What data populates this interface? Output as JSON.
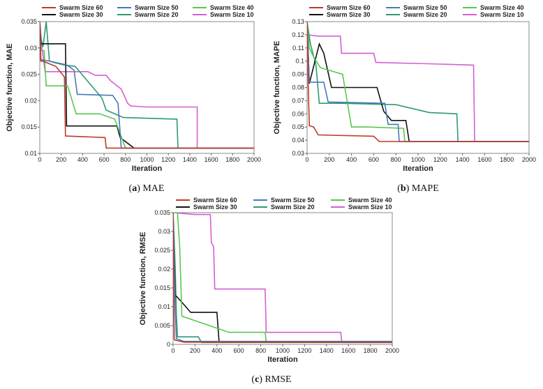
{
  "colors": {
    "Swarm Size 60": "#c0392b",
    "Swarm Size 50": "#4a78b8",
    "Swarm Size 40": "#57c94a",
    "Swarm Size 30": "#111111",
    "Swarm Size 20": "#2e9a72",
    "Swarm Size 10": "#d35fd3"
  },
  "chart_data": [
    {
      "type": "line",
      "caption_letter": "(a)",
      "caption_text": " MAE",
      "xlabel": "Iteration",
      "ylabel": "Objective function, MAE",
      "xlim": [
        0,
        2000
      ],
      "ylim": [
        0.01,
        0.035
      ],
      "xticks": [
        "0",
        "200",
        "400",
        "600",
        "800",
        "1000",
        "1200",
        "1400",
        "1600",
        "1800",
        "2000"
      ],
      "yticks": [
        "0.01",
        "0.015",
        "0.02",
        "0.025",
        "0.03",
        "0.035"
      ],
      "legend": [
        "Swarm Size 60",
        "Swarm Size 50",
        "Swarm Size 40",
        "Swarm Size 30",
        "Swarm Size 20",
        "Swarm Size 10"
      ],
      "series": [
        {
          "name": "Swarm Size 10",
          "x": [
            0,
            20,
            50,
            450,
            520,
            620,
            660,
            760,
            820,
            850,
            1000,
            1470,
            1470,
            2000
          ],
          "y": [
            0.035,
            0.03,
            0.0255,
            0.0255,
            0.0248,
            0.0248,
            0.0238,
            0.0222,
            0.0195,
            0.019,
            0.0188,
            0.0188,
            0.011,
            0.011
          ]
        },
        {
          "name": "Swarm Size 20",
          "x": [
            0,
            10,
            30,
            60,
            90,
            140,
            220,
            330,
            580,
            620,
            780,
            1280,
            1290,
            2000
          ],
          "y": [
            0.035,
            0.032,
            0.0302,
            0.035,
            0.0275,
            0.0272,
            0.0268,
            0.0265,
            0.0205,
            0.0182,
            0.0168,
            0.0165,
            0.011,
            0.011
          ]
        },
        {
          "name": "Swarm Size 30",
          "x": [
            0,
            10,
            30,
            240,
            250,
            720,
            750,
            880,
            2000
          ],
          "y": [
            0.035,
            0.0308,
            0.0308,
            0.0308,
            0.0152,
            0.0152,
            0.013,
            0.011,
            0.011
          ]
        },
        {
          "name": "Swarm Size 40",
          "x": [
            0,
            10,
            40,
            60,
            260,
            340,
            560,
            700,
            800,
            1500,
            2000
          ],
          "y": [
            0.035,
            0.0295,
            0.0295,
            0.0228,
            0.0228,
            0.0175,
            0.0175,
            0.0165,
            0.011,
            0.011,
            0.011
          ]
        },
        {
          "name": "Swarm Size 50",
          "x": [
            0,
            10,
            90,
            250,
            320,
            350,
            680,
            730,
            760,
            2000
          ],
          "y": [
            0.035,
            0.0278,
            0.0275,
            0.0268,
            0.0258,
            0.0212,
            0.021,
            0.0195,
            0.011,
            0.011
          ]
        },
        {
          "name": "Swarm Size 60",
          "x": [
            0,
            10,
            30,
            150,
            230,
            240,
            610,
            620,
            2000
          ],
          "y": [
            0.035,
            0.0275,
            0.0275,
            0.0265,
            0.0245,
            0.0133,
            0.013,
            0.011,
            0.011
          ]
        }
      ]
    },
    {
      "type": "line",
      "caption_letter": "(b)",
      "caption_text": " MAPE",
      "xlabel": "Iteration",
      "ylabel": "Objective function, MAPE",
      "xlim": [
        0,
        2000
      ],
      "ylim": [
        0.03,
        0.13
      ],
      "xticks": [
        "0",
        "200",
        "400",
        "600",
        "800",
        "1000",
        "1200",
        "1400",
        "1600",
        "1800",
        "2000"
      ],
      "yticks": [
        "0.03",
        "0.04",
        "0.05",
        "0.06",
        "0.07",
        "0.08",
        "0.09",
        "0.1",
        "0.11",
        "0.12",
        "0.13"
      ],
      "legend": [
        "Swarm Size 60",
        "Swarm Size 50",
        "Swarm Size 40",
        "Swarm Size 30",
        "Swarm Size 20",
        "Swarm Size 10"
      ],
      "series": [
        {
          "name": "Swarm Size 10",
          "x": [
            0,
            100,
            300,
            310,
            600,
            620,
            1100,
            1500,
            1510,
            2000
          ],
          "y": [
            0.12,
            0.119,
            0.119,
            0.106,
            0.106,
            0.099,
            0.098,
            0.097,
            0.039,
            0.039
          ]
        },
        {
          "name": "Swarm Size 20",
          "x": [
            0,
            30,
            80,
            110,
            300,
            800,
            1100,
            1350,
            1360,
            2000
          ],
          "y": [
            0.13,
            0.113,
            0.097,
            0.068,
            0.068,
            0.067,
            0.061,
            0.06,
            0.039,
            0.039
          ]
        },
        {
          "name": "Swarm Size 30",
          "x": [
            0,
            20,
            110,
            150,
            220,
            630,
            690,
            760,
            890,
            920,
            2000
          ],
          "y": [
            0.13,
            0.083,
            0.113,
            0.106,
            0.08,
            0.08,
            0.062,
            0.055,
            0.055,
            0.039,
            0.039
          ]
        },
        {
          "name": "Swarm Size 40",
          "x": [
            0,
            20,
            60,
            120,
            200,
            320,
            400,
            560,
            870,
            880,
            2000
          ],
          "y": [
            0.13,
            0.11,
            0.103,
            0.095,
            0.093,
            0.09,
            0.05,
            0.05,
            0.049,
            0.039,
            0.039
          ]
        },
        {
          "name": "Swarm Size 50",
          "x": [
            0,
            20,
            150,
            190,
            700,
            730,
            820,
            830,
            2000
          ],
          "y": [
            0.13,
            0.084,
            0.084,
            0.069,
            0.068,
            0.052,
            0.052,
            0.039,
            0.039
          ]
        },
        {
          "name": "Swarm Size 60",
          "x": [
            0,
            10,
            20,
            60,
            100,
            600,
            650,
            2000
          ],
          "y": [
            0.13,
            0.082,
            0.051,
            0.05,
            0.044,
            0.043,
            0.039,
            0.039
          ]
        }
      ]
    },
    {
      "type": "line",
      "caption_letter": "(c)",
      "caption_text": " RMSE",
      "xlabel": "Iteration",
      "ylabel": "Objective function, RMSE",
      "xlim": [
        0,
        2000
      ],
      "ylim": [
        0,
        0.035
      ],
      "xticks": [
        "0",
        "200",
        "400",
        "600",
        "800",
        "1000",
        "1200",
        "1400",
        "1600",
        "1800",
        "2000"
      ],
      "yticks": [
        "0",
        "0.005",
        "0.01",
        "0.015",
        "0.02",
        "0.025",
        "0.03",
        "0.035"
      ],
      "legend": [
        "Swarm Size 60",
        "Swarm Size 50",
        "Swarm Size 40",
        "Swarm Size 30",
        "Swarm Size 20",
        "Swarm Size 10"
      ],
      "series": [
        {
          "name": "Swarm Size 10",
          "x": [
            0,
            200,
            340,
            350,
            370,
            380,
            840,
            850,
            1530,
            1540,
            2000
          ],
          "y": [
            0.035,
            0.0345,
            0.0345,
            0.027,
            0.026,
            0.0147,
            0.0147,
            0.0032,
            0.0032,
            0.0005,
            0.0005
          ]
        },
        {
          "name": "Swarm Size 20",
          "x": [
            0,
            20,
            30,
            40,
            230,
            260,
            1300,
            2000
          ],
          "y": [
            0.035,
            0.02,
            0.008,
            0.002,
            0.002,
            0.0005,
            0.0005,
            0.0005
          ]
        },
        {
          "name": "Swarm Size 30",
          "x": [
            0,
            20,
            30,
            110,
            160,
            400,
            420,
            2000
          ],
          "y": [
            0.035,
            0.0128,
            0.0128,
            0.0102,
            0.0085,
            0.0085,
            0.0007,
            0.0007
          ]
        },
        {
          "name": "Swarm Size 40",
          "x": [
            0,
            40,
            60,
            80,
            510,
            840,
            850,
            2000
          ],
          "y": [
            0.035,
            0.035,
            0.026,
            0.0075,
            0.0032,
            0.0032,
            0.0007,
            0.0007
          ]
        },
        {
          "name": "Swarm Size 50",
          "x": [
            0,
            20,
            30,
            60,
            100,
            2000
          ],
          "y": [
            0.035,
            0.0095,
            0.0015,
            0.0012,
            0.0008,
            0.0008
          ]
        },
        {
          "name": "Swarm Size 60",
          "x": [
            0,
            10,
            20,
            40,
            100,
            2000
          ],
          "y": [
            0.035,
            0.0014,
            0.0011,
            0.001,
            0.0006,
            0.0006
          ]
        }
      ]
    }
  ]
}
